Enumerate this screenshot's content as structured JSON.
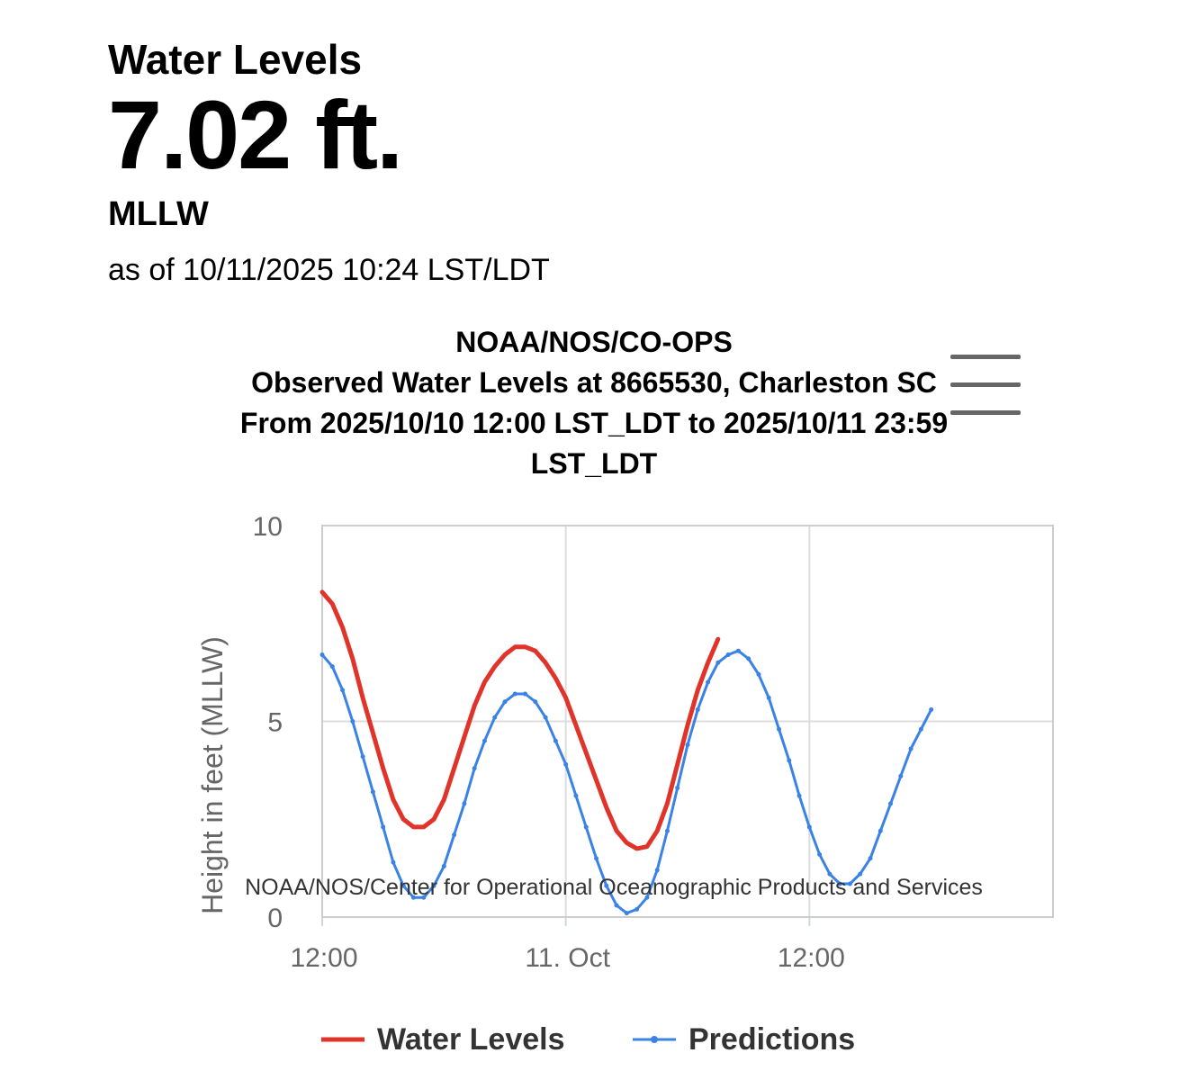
{
  "header": {
    "title": "Water Levels",
    "value": "7.02 ft.",
    "datum": "MLLW",
    "as_of": "as of 10/11/2025 10:24 LST/LDT"
  },
  "chart_data": {
    "type": "line",
    "title": [
      "NOAA/NOS/CO-OPS",
      "Observed Water Levels at 8665530, Charleston SC",
      "From 2025/10/10 12:00 LST_LDT to 2025/10/11 23:59",
      "LST_LDT"
    ],
    "ylabel": "Height in feet (MLLW)",
    "xlabel": "",
    "ylim": [
      0,
      10
    ],
    "yticks": [
      0,
      5,
      10
    ],
    "xlim_hours": [
      0,
      36
    ],
    "xticks": [
      {
        "hours": 0,
        "label": "12:00"
      },
      {
        "hours": 12,
        "label": "11. Oct"
      },
      {
        "hours": 24,
        "label": "12:00"
      }
    ],
    "grid": true,
    "credits": "NOAA/NOS/Center for Operational Oceanographic Products and Services",
    "series": [
      {
        "name": "Water Levels",
        "color": "#e0342a",
        "style": "line",
        "points": [
          [
            0,
            8.3
          ],
          [
            0.5,
            8.0
          ],
          [
            1,
            7.4
          ],
          [
            1.5,
            6.6
          ],
          [
            2,
            5.6
          ],
          [
            2.5,
            4.7
          ],
          [
            3,
            3.8
          ],
          [
            3.5,
            3.0
          ],
          [
            4,
            2.5
          ],
          [
            4.5,
            2.3
          ],
          [
            5,
            2.3
          ],
          [
            5.5,
            2.5
          ],
          [
            6,
            3.0
          ],
          [
            6.5,
            3.8
          ],
          [
            7,
            4.6
          ],
          [
            7.5,
            5.4
          ],
          [
            8,
            6.0
          ],
          [
            8.5,
            6.4
          ],
          [
            9,
            6.7
          ],
          [
            9.5,
            6.9
          ],
          [
            10,
            6.9
          ],
          [
            10.5,
            6.8
          ],
          [
            11,
            6.5
          ],
          [
            11.5,
            6.1
          ],
          [
            12,
            5.6
          ],
          [
            12.5,
            4.9
          ],
          [
            13,
            4.2
          ],
          [
            13.5,
            3.5
          ],
          [
            14,
            2.8
          ],
          [
            14.5,
            2.2
          ],
          [
            15,
            1.9
          ],
          [
            15.5,
            1.75
          ],
          [
            16,
            1.8
          ],
          [
            16.5,
            2.2
          ],
          [
            17,
            2.9
          ],
          [
            17.5,
            3.9
          ],
          [
            18,
            4.9
          ],
          [
            18.5,
            5.8
          ],
          [
            19,
            6.5
          ],
          [
            19.5,
            7.1
          ]
        ]
      },
      {
        "name": "Predictions",
        "color": "#3a82e6",
        "style": "line-dots",
        "points": [
          [
            0,
            6.7
          ],
          [
            0.5,
            6.4
          ],
          [
            1,
            5.8
          ],
          [
            1.5,
            5.0
          ],
          [
            2,
            4.1
          ],
          [
            2.5,
            3.2
          ],
          [
            3,
            2.3
          ],
          [
            3.5,
            1.4
          ],
          [
            4,
            0.8
          ],
          [
            4.5,
            0.5
          ],
          [
            5,
            0.5
          ],
          [
            5.5,
            0.8
          ],
          [
            6,
            1.3
          ],
          [
            6.5,
            2.1
          ],
          [
            7,
            2.9
          ],
          [
            7.5,
            3.8
          ],
          [
            8,
            4.5
          ],
          [
            8.5,
            5.1
          ],
          [
            9,
            5.5
          ],
          [
            9.5,
            5.7
          ],
          [
            10,
            5.7
          ],
          [
            10.5,
            5.5
          ],
          [
            11,
            5.1
          ],
          [
            11.5,
            4.5
          ],
          [
            12,
            3.9
          ],
          [
            12.5,
            3.1
          ],
          [
            13,
            2.3
          ],
          [
            13.5,
            1.5
          ],
          [
            14,
            0.8
          ],
          [
            14.5,
            0.3
          ],
          [
            15,
            0.1
          ],
          [
            15.5,
            0.2
          ],
          [
            16,
            0.5
          ],
          [
            16.5,
            1.2
          ],
          [
            17,
            2.2
          ],
          [
            17.5,
            3.3
          ],
          [
            18,
            4.4
          ],
          [
            18.5,
            5.3
          ],
          [
            19,
            6.0
          ],
          [
            19.5,
            6.5
          ],
          [
            20,
            6.7
          ],
          [
            20.5,
            6.8
          ],
          [
            21,
            6.6
          ],
          [
            21.5,
            6.2
          ],
          [
            22,
            5.6
          ],
          [
            22.5,
            4.8
          ],
          [
            23,
            4.0
          ],
          [
            23.5,
            3.1
          ],
          [
            24,
            2.3
          ],
          [
            24.5,
            1.6
          ],
          [
            25,
            1.1
          ],
          [
            25.5,
            0.85
          ],
          [
            26,
            0.85
          ],
          [
            26.5,
            1.1
          ],
          [
            27,
            1.5
          ],
          [
            27.5,
            2.2
          ],
          [
            28,
            2.9
          ],
          [
            28.5,
            3.6
          ],
          [
            29,
            4.3
          ],
          [
            29.5,
            4.8
          ],
          [
            30,
            5.3
          ]
        ]
      }
    ]
  }
}
